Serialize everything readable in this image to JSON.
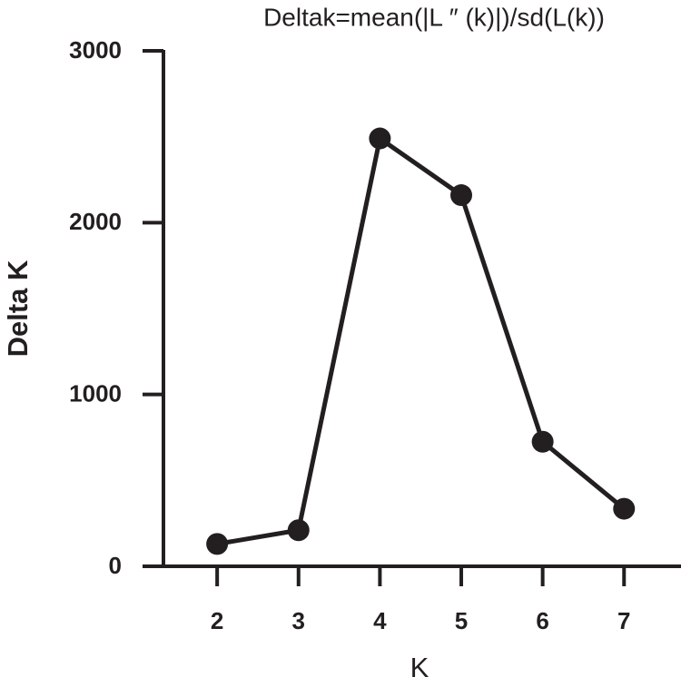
{
  "chart_data": {
    "type": "line",
    "title": "Deltak=mean(|L ″ (k)|)/sd(L(k))",
    "x_label": "K",
    "y_label": "Delta K",
    "x": [
      2,
      3,
      4,
      5,
      6,
      7
    ],
    "series": [
      {
        "name": "Delta K",
        "color": "#231f20",
        "values": [
          130,
          210,
          2490,
          2160,
          725,
          335
        ]
      }
    ],
    "xlim": [
      1.34,
      7.7
    ],
    "xticks": [
      2,
      3,
      4,
      5,
      6,
      7
    ],
    "ylim": [
      0,
      3000
    ],
    "yticks": [
      0,
      1000,
      2000,
      3000
    ]
  }
}
